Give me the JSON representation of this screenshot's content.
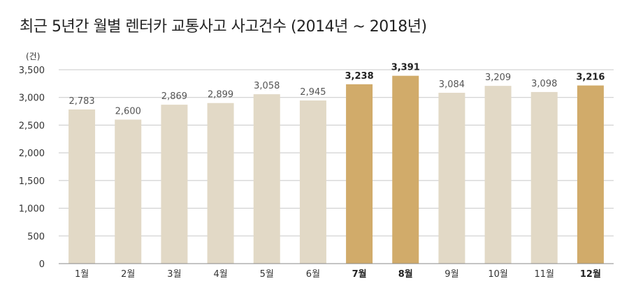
{
  "title": "최근 5년간 월별 렌터카 교통사고 사고건수 (2014년 ~ 2018년)",
  "colors": {
    "bar_normal": "#e2d9c6",
    "bar_highlight": "#d1ab6a",
    "grid": "#c8c8c8",
    "axis": "#888888"
  },
  "chart_data": {
    "type": "bar",
    "unit_label": "(건)",
    "categories": [
      "1월",
      "2월",
      "3월",
      "4월",
      "5월",
      "6월",
      "7월",
      "8월",
      "9월",
      "10월",
      "11월",
      "12월"
    ],
    "values": [
      2783,
      2600,
      2869,
      2899,
      3058,
      2945,
      3238,
      3391,
      3084,
      3209,
      3098,
      3216
    ],
    "value_labels": [
      "2,783",
      "2,600",
      "2,869",
      "2,899",
      "3,058",
      "2,945",
      "3,238",
      "3,391",
      "3,084",
      "3,209",
      "3,098",
      "3,216"
    ],
    "highlighted": [
      false,
      false,
      false,
      false,
      false,
      false,
      true,
      true,
      false,
      false,
      false,
      true
    ],
    "y_ticks": [
      0,
      500,
      1000,
      1500,
      2000,
      2500,
      3000,
      3500
    ],
    "y_tick_labels": [
      "0",
      "500",
      "1,000",
      "1,500",
      "2,000",
      "2,500",
      "3,000",
      "3,500"
    ],
    "ylim": [
      0,
      3500
    ],
    "grid": true,
    "legend": "none"
  }
}
